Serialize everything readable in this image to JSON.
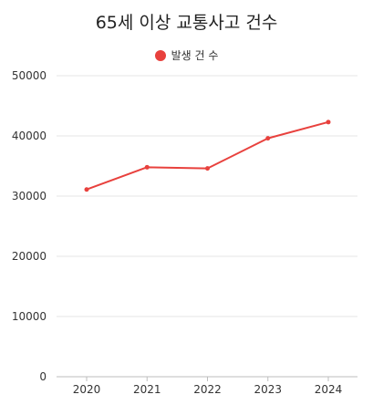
{
  "chart_data": {
    "type": "line",
    "title": "65세 이상 교통사고 건수",
    "x": [
      "2020",
      "2021",
      "2022",
      "2023",
      "2024"
    ],
    "series": [
      {
        "name": "발생 건 수",
        "values": [
          31100,
          34800,
          34600,
          39600,
          42300
        ],
        "color": "#e8413d"
      }
    ],
    "ylim": [
      0,
      50000
    ],
    "yticks": [
      0,
      10000,
      20000,
      30000,
      40000,
      50000
    ],
    "grid": true,
    "legend_position": "top-center"
  }
}
